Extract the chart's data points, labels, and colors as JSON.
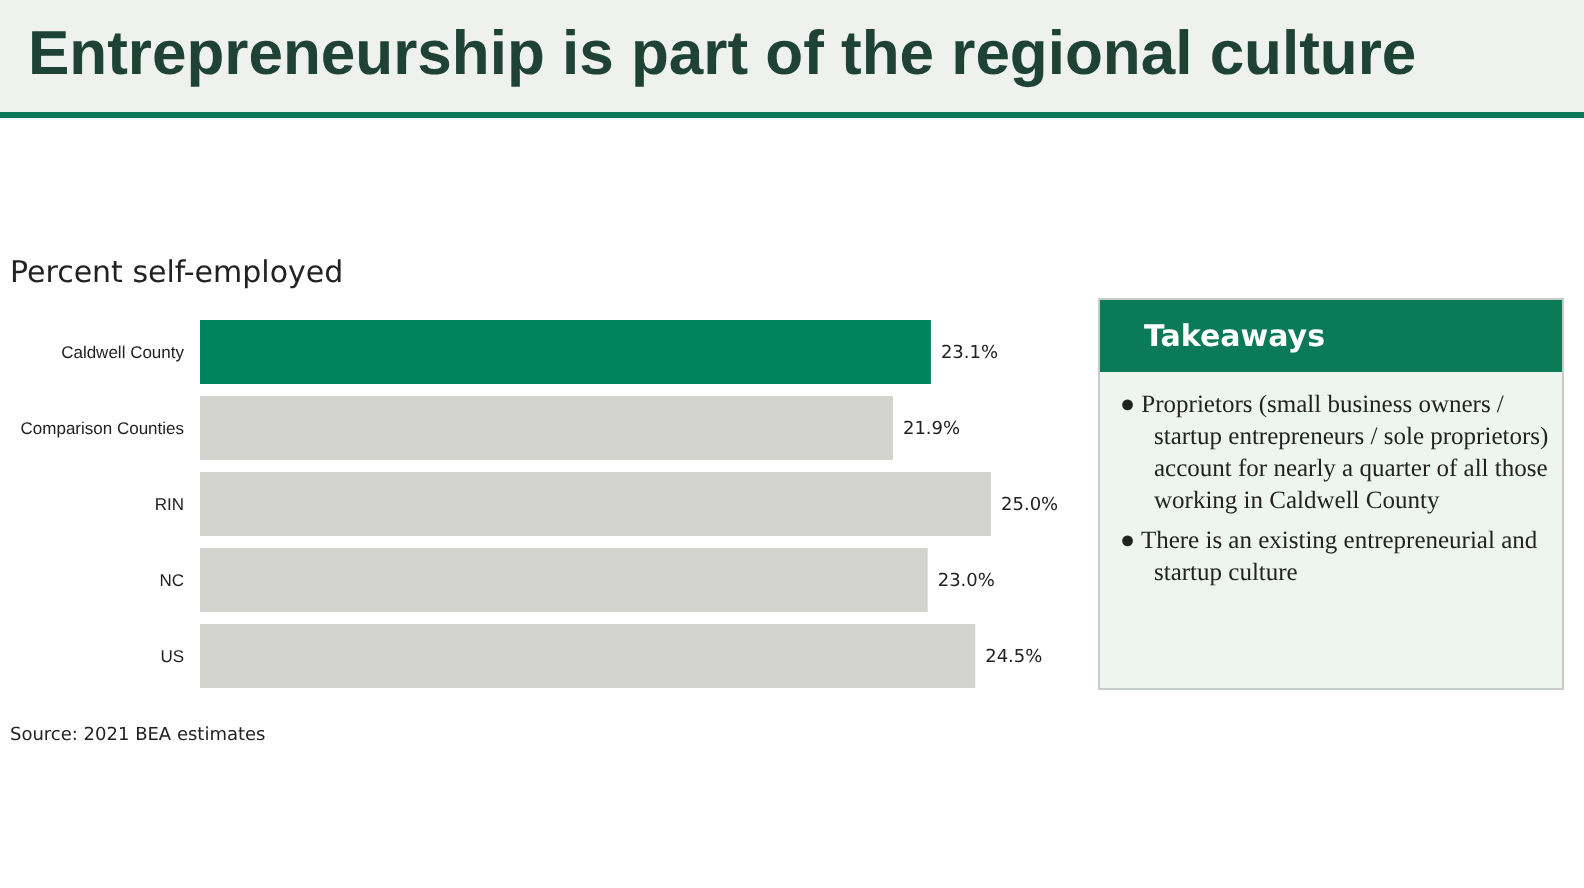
{
  "chart_data": [
    {
      "type": "bar",
      "orientation": "horizontal",
      "title": "Entrepreneurship is part of the regional culture",
      "subtitle": "Percent self-employed",
      "categories": [
        "Caldwell County",
        "Comparison Counties",
        "RIN",
        "NC",
        "US"
      ],
      "values": [
        23.1,
        21.9,
        25.0,
        23.0,
        24.5
      ],
      "colors": [
        "#00845f",
        "#d3d3cf",
        "#d3d3cf",
        "#d3d3cf",
        "#d3d3cf"
      ],
      "value_labels": [
        "23.1%",
        "21.9%",
        "25.0%",
        "23.0%",
        "24.5%"
      ],
      "annotations": [
        "Source: 2021 BEA estimates"
      ],
      "grid": false,
      "tick_labels": "y"
    },
    {
      "type": "other",
      "title": "Takeaways",
      "annotations": [
        "●  Proprietors (small business owners / startup entrepreneurs / sole proprietors) account for nearly a quarter of all those working in Caldwell County",
        "●  There is an existing entrepreneurial and startup culture"
      ]
    }
  ]
}
